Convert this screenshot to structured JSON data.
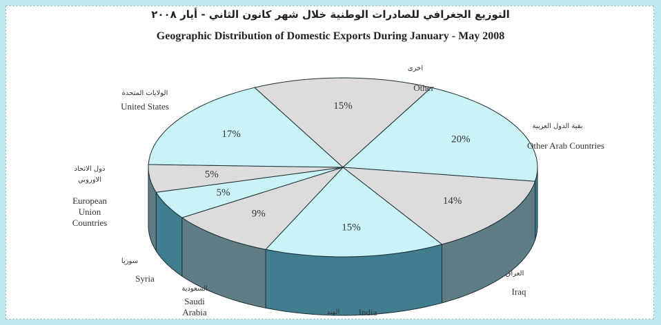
{
  "chart_data": {
    "type": "pie",
    "title": "التوزيع الجغرافي للصادرات الوطنية خلال شهر كانون الثاني - أيار ٢٠٠٨",
    "subtitle": "Geographic Distribution of Domestic Exports During  January - May 2008",
    "categories": [
      "Other",
      "Other Arab Countries",
      "Iraq",
      "India",
      "Saudi Arabia",
      "Syria",
      "European Union Countries",
      "United States"
    ],
    "categories_ar": [
      "اخرى",
      "بقية الدول العربية",
      "العراق",
      "الهند",
      "السعودية",
      "سوريا",
      "دول الاتحاد الاوروبي",
      "الولايات المتحدة"
    ],
    "values": [
      15,
      20,
      14,
      15,
      9,
      5,
      5,
      17
    ],
    "value_labels": [
      "15%",
      "20%",
      "14%",
      "15%",
      "9%",
      "5%",
      "5%",
      "17%"
    ],
    "colors": [
      "#dcdcdc",
      "#c9f3f7",
      "#dcdcdc",
      "#c9f3f7",
      "#dcdcdc",
      "#c9f3f7",
      "#dcdcdc",
      "#c9f3f7"
    ],
    "side_colors": [
      "#5f7d86",
      "#3f7d8f",
      "#5f7d86",
      "#3f7d8f",
      "#5f7d86",
      "#3f7d8f",
      "#5f7d86",
      "#3f7d8f"
    ]
  }
}
